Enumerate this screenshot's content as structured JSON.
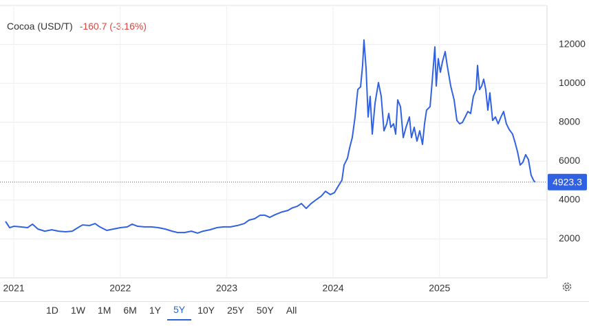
{
  "chart_data": {
    "type": "line",
    "title": "Cocoa (USD/T)",
    "change": "-160.7",
    "change_percent": "(-3.16%)",
    "xlim": [
      2020.87,
      2026.01
    ],
    "xticks": [
      2021,
      2022,
      2023,
      2024,
      2025
    ],
    "ylim": [
      0,
      14000
    ],
    "yticks": [
      2000,
      4000,
      6000,
      8000,
      10000,
      12000
    ],
    "grid": true,
    "x": [
      2020.922,
      2020.961,
      2021.0,
      2021.065,
      2021.129,
      2021.175,
      2021.226,
      2021.291,
      2021.356,
      2021.42,
      2021.485,
      2021.549,
      2021.614,
      2021.646,
      2021.711,
      2021.763,
      2021.808,
      2021.873,
      2021.937,
      2022.002,
      2022.066,
      2022.112,
      2022.164,
      2022.228,
      2022.293,
      2022.357,
      2022.422,
      2022.487,
      2022.538,
      2022.603,
      2022.668,
      2022.726,
      2022.778,
      2022.842,
      2022.907,
      2022.972,
      2023.036,
      2023.101,
      2023.165,
      2023.211,
      2023.262,
      2023.314,
      2023.359,
      2023.405,
      2023.456,
      2023.521,
      2023.573,
      2023.618,
      2023.663,
      2023.702,
      2023.747,
      2023.793,
      2023.844,
      2023.89,
      2023.928,
      2023.974,
      2024.012,
      2024.051,
      2024.083,
      2024.103,
      2024.135,
      2024.155,
      2024.18,
      2024.206,
      2024.232,
      2024.258,
      2024.277,
      2024.29,
      2024.31,
      2024.329,
      2024.348,
      2024.368,
      2024.394,
      2024.426,
      2024.452,
      2024.478,
      2024.504,
      2024.523,
      2024.542,
      2024.568,
      2024.588,
      2024.607,
      2024.633,
      2024.659,
      2024.685,
      2024.717,
      2024.736,
      2024.762,
      2024.788,
      2024.814,
      2024.84,
      2024.859,
      2024.878,
      2024.911,
      2024.93,
      2024.956,
      2024.969,
      2024.988,
      2025.008,
      2025.027,
      2025.053,
      2025.072,
      2025.105,
      2025.137,
      2025.163,
      2025.189,
      2025.215,
      2025.241,
      2025.266,
      2025.292,
      2025.318,
      2025.344,
      2025.357,
      2025.376,
      2025.396,
      2025.415,
      2025.434,
      2025.454,
      2025.473,
      2025.499,
      2025.525,
      2025.551,
      2025.577,
      2025.602,
      2025.628,
      2025.654,
      2025.686,
      2025.706,
      2025.732,
      2025.758,
      2025.783,
      2025.809,
      2025.835,
      2025.861,
      2025.887,
      2025.9
    ],
    "series": [
      {
        "name": "Cocoa",
        "color": "#3061e3",
        "values": [
          2900,
          2580,
          2650,
          2620,
          2580,
          2760,
          2510,
          2400,
          2470,
          2400,
          2370,
          2400,
          2620,
          2720,
          2690,
          2790,
          2620,
          2440,
          2510,
          2580,
          2620,
          2760,
          2650,
          2620,
          2620,
          2580,
          2510,
          2400,
          2330,
          2330,
          2400,
          2300,
          2400,
          2470,
          2580,
          2620,
          2620,
          2690,
          2790,
          2970,
          3040,
          3220,
          3220,
          3110,
          3250,
          3390,
          3460,
          3600,
          3680,
          3820,
          3570,
          3820,
          4030,
          4210,
          4450,
          4280,
          4380,
          4740,
          5020,
          5800,
          6150,
          6680,
          7210,
          8270,
          9680,
          9820,
          10920,
          12230,
          10740,
          8270,
          9330,
          7390,
          8980,
          10040,
          9330,
          7560,
          7920,
          8450,
          7740,
          7920,
          7390,
          9150,
          8800,
          7210,
          7740,
          8270,
          7210,
          7740,
          7030,
          7560,
          6860,
          7920,
          8620,
          8800,
          10040,
          11870,
          9860,
          11270,
          10570,
          11100,
          11630,
          10920,
          9860,
          9150,
          8090,
          7920,
          7990,
          8270,
          8550,
          8450,
          9330,
          9680,
          10920,
          9680,
          9860,
          10210,
          9680,
          8620,
          9510,
          8090,
          8270,
          7920,
          8270,
          8550,
          7920,
          7630,
          7390,
          7030,
          6500,
          5800,
          5940,
          6330,
          6080,
          5270,
          4980,
          4923.3
        ]
      }
    ],
    "ranges": [
      "1D",
      "1W",
      "1M",
      "6M",
      "1Y",
      "5Y",
      "10Y",
      "25Y",
      "50Y",
      "All"
    ],
    "active_range": "5Y"
  }
}
